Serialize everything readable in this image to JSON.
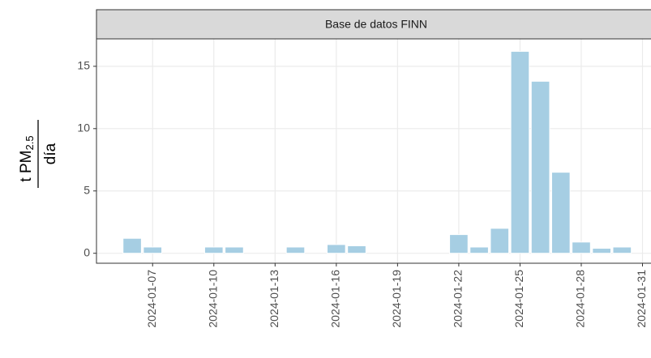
{
  "chart_data": {
    "type": "bar",
    "title": "Base de datos FINN",
    "ylabel": {
      "numerator": "t PM",
      "subscript": "2.5",
      "denominator": "día"
    },
    "x": [
      "2024-01-06",
      "2024-01-07",
      "2024-01-10",
      "2024-01-11",
      "2024-01-14",
      "2024-01-16",
      "2024-01-17",
      "2024-01-22",
      "2024-01-23",
      "2024-01-24",
      "2024-01-25",
      "2024-01-26",
      "2024-01-27",
      "2024-01-28",
      "2024-01-29",
      "2024-01-30"
    ],
    "values": [
      1.2,
      0.5,
      0.5,
      0.5,
      0.5,
      0.7,
      0.6,
      1.5,
      0.5,
      2.0,
      16.2,
      13.8,
      6.5,
      0.9,
      0.4,
      0.5
    ],
    "color": "#a6cee3",
    "xlim": [
      "2024-01-04T06:00",
      "2024-01-31T10:00"
    ],
    "xticks": [
      "2024-01-07",
      "2024-01-10",
      "2024-01-13",
      "2024-01-16",
      "2024-01-19",
      "2024-01-22",
      "2024-01-25",
      "2024-01-28",
      "2024-01-31"
    ],
    "ylim": [
      -0.8,
      17.2
    ],
    "yticks": [
      0,
      5,
      10,
      15
    ],
    "grid": true
  }
}
